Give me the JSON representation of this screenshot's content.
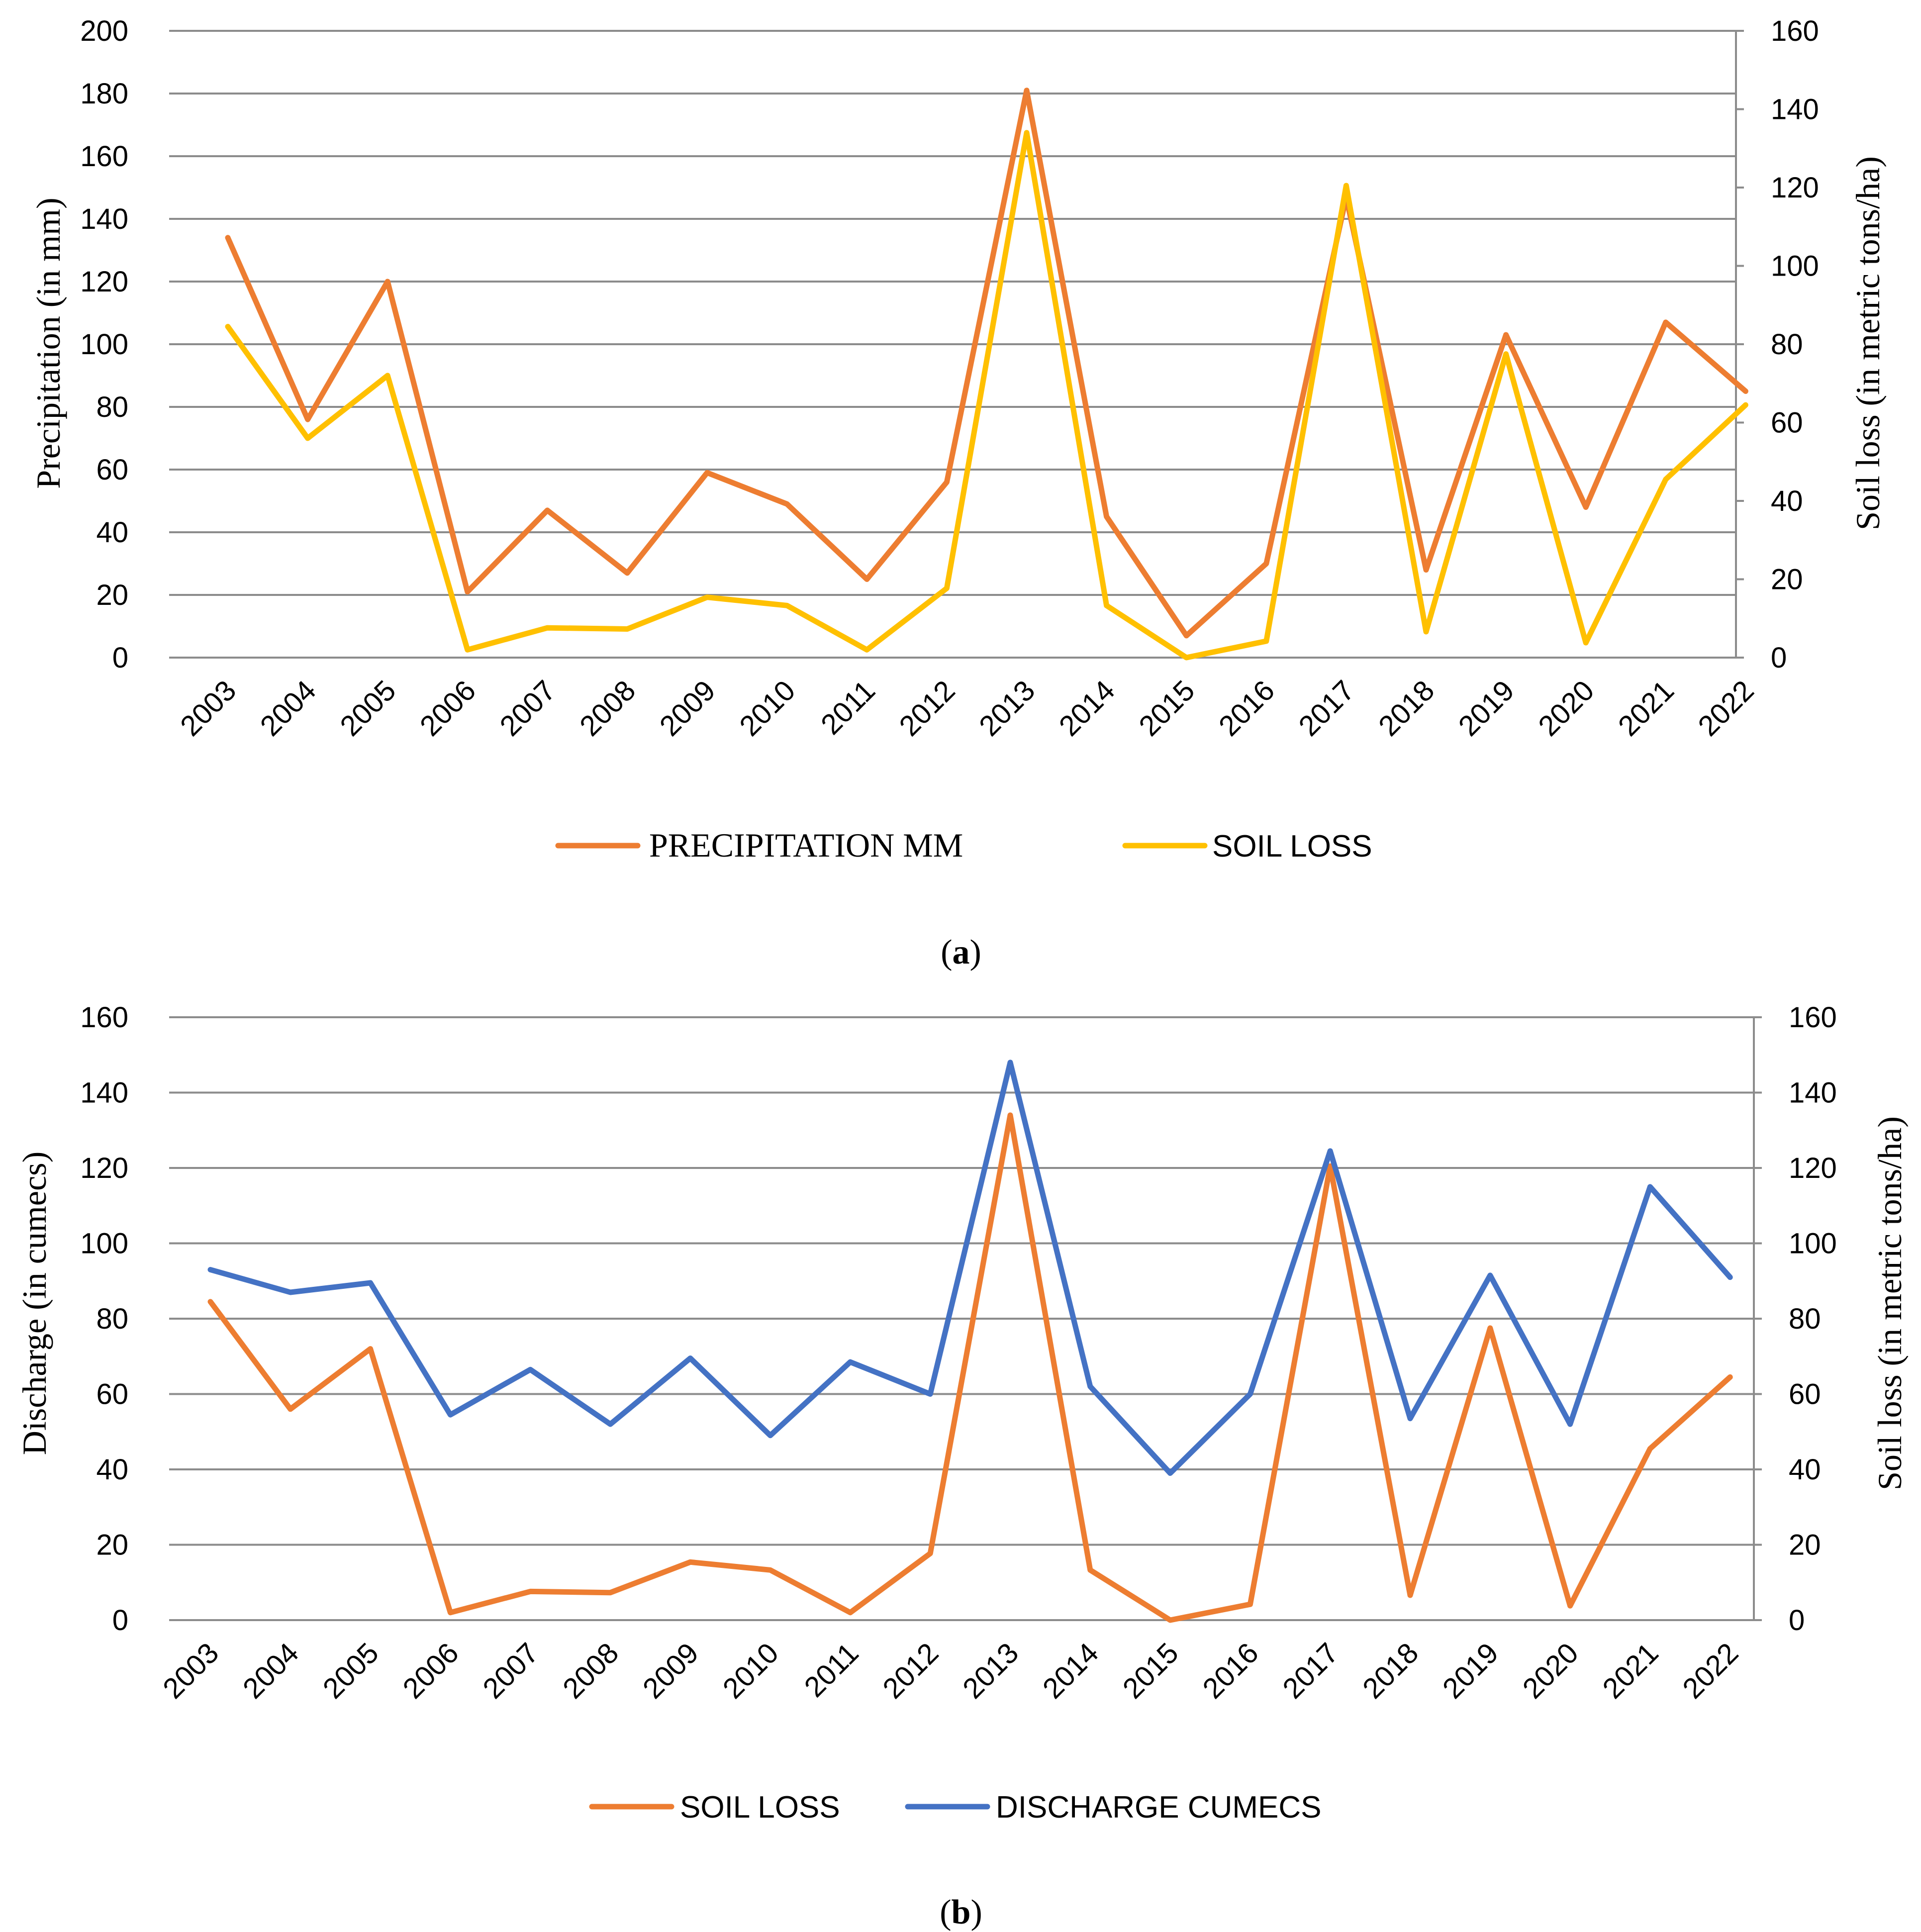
{
  "colors": {
    "precipitation": "#ED7D31",
    "soil_loss_a": "#FFC000",
    "soil_loss_b": "#ED7D31",
    "discharge": "#4472C4"
  },
  "chart_data": [
    {
      "id": "a",
      "type": "line",
      "panel_label": {
        "open": "(",
        "letter": "a",
        "close": ")"
      },
      "categories": [
        "2003",
        "2004",
        "2005",
        "2006",
        "2007",
        "2008",
        "2009",
        "2010",
        "2011",
        "2012",
        "2013",
        "2014",
        "2015",
        "2016",
        "2017",
        "2018",
        "2019",
        "2020",
        "2021",
        "2022"
      ],
      "ylabel_left": "Precipitation (in mm)",
      "ylabel_right": "Soil loss (in metric tons/ha)",
      "ylim_left": [
        0,
        200
      ],
      "ylim_right": [
        0,
        160
      ],
      "yticks_left": [
        "0",
        "20",
        "40",
        "60",
        "80",
        "100",
        "120",
        "140",
        "160",
        "180",
        "200"
      ],
      "yticks_right": [
        "0",
        "20",
        "40",
        "60",
        "80",
        "100",
        "120",
        "140",
        "160"
      ],
      "series": [
        {
          "name": "PRECIPITATION MM",
          "axis": "left",
          "color": "#ED7D31",
          "values": [
            134,
            76,
            120,
            21,
            47,
            27,
            59,
            49,
            25,
            56,
            181,
            45,
            7,
            30,
            147,
            28,
            103,
            48,
            107,
            85
          ]
        },
        {
          "name": "SOIL LOSS",
          "axis": "right",
          "color": "#FFC000",
          "values": [
            84.5,
            56,
            72,
            2,
            7.6,
            7.3,
            15.4,
            13.3,
            2,
            17.7,
            134,
            13.3,
            0,
            4.2,
            120.5,
            6.6,
            77.5,
            3.8,
            45.5,
            64.5
          ]
        }
      ]
    },
    {
      "id": "b",
      "type": "line",
      "panel_label": {
        "open": "(",
        "letter": "b",
        "close": ")"
      },
      "categories": [
        "2003",
        "2004",
        "2005",
        "2006",
        "2007",
        "2008",
        "2009",
        "2010",
        "2011",
        "2012",
        "2013",
        "2014",
        "2015",
        "2016",
        "2017",
        "2018",
        "2019",
        "2020",
        "2021",
        "2022"
      ],
      "ylabel_left": "Discharge (in cumecs)",
      "ylabel_right": "Soil loss (in metric tons/ha)",
      "ylim_left": [
        0,
        160
      ],
      "ylim_right": [
        0,
        160
      ],
      "yticks_left": [
        "0",
        "20",
        "40",
        "60",
        "80",
        "100",
        "120",
        "140",
        "160"
      ],
      "yticks_right": [
        "0",
        "20",
        "40",
        "60",
        "80",
        "100",
        "120",
        "140",
        "160"
      ],
      "series": [
        {
          "name": "SOIL LOSS",
          "axis": "right",
          "color": "#ED7D31",
          "values": [
            84.5,
            56,
            72,
            2,
            7.6,
            7.3,
            15.4,
            13.3,
            2,
            17.7,
            134,
            13.3,
            0,
            4.2,
            120.5,
            6.6,
            77.5,
            3.8,
            45.5,
            64.5
          ]
        },
        {
          "name": "DISCHARGE CUMECS",
          "axis": "left",
          "color": "#4472C4",
          "values": [
            93,
            87,
            89.5,
            54.5,
            66.5,
            52,
            69.5,
            49,
            68.5,
            60,
            148,
            62,
            39,
            60,
            124.5,
            53.5,
            91.5,
            52,
            115,
            91
          ]
        }
      ]
    }
  ]
}
